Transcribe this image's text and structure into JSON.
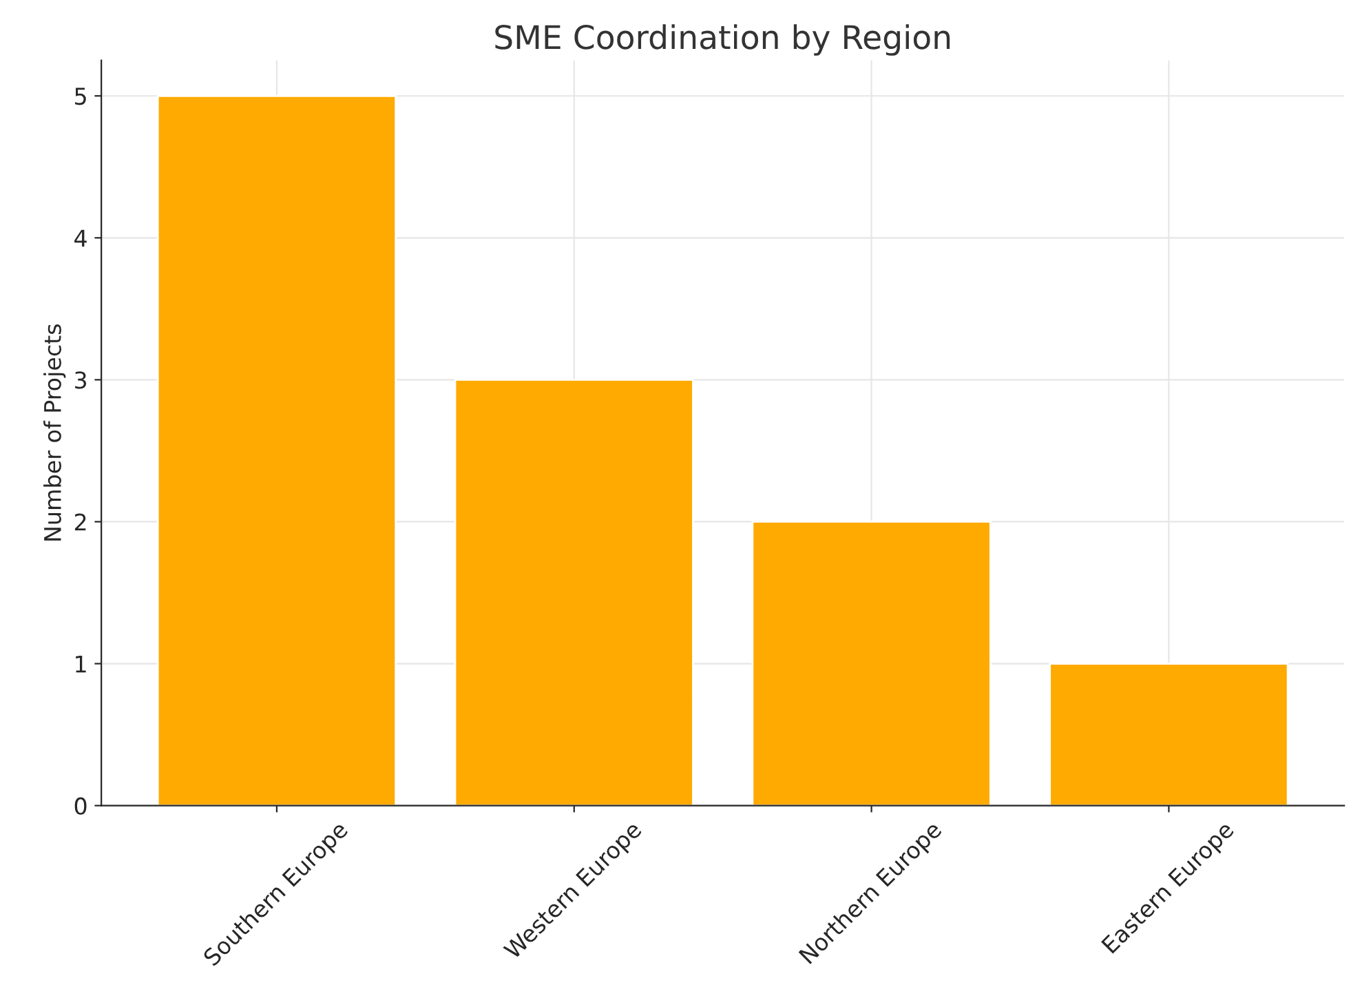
{
  "chart_data": {
    "type": "bar",
    "title": "SME Coordination by Region",
    "ylabel": "Number of Projects",
    "categories": [
      "Southern Europe",
      "Western Europe",
      "Northern Europe",
      "Eastern Europe"
    ],
    "values": [
      5,
      3,
      2,
      1
    ],
    "color": "#ffaa00",
    "ylim": [
      0,
      5.25
    ],
    "yticks": [
      0,
      1,
      2,
      3,
      4,
      5
    ],
    "grid": true
  }
}
